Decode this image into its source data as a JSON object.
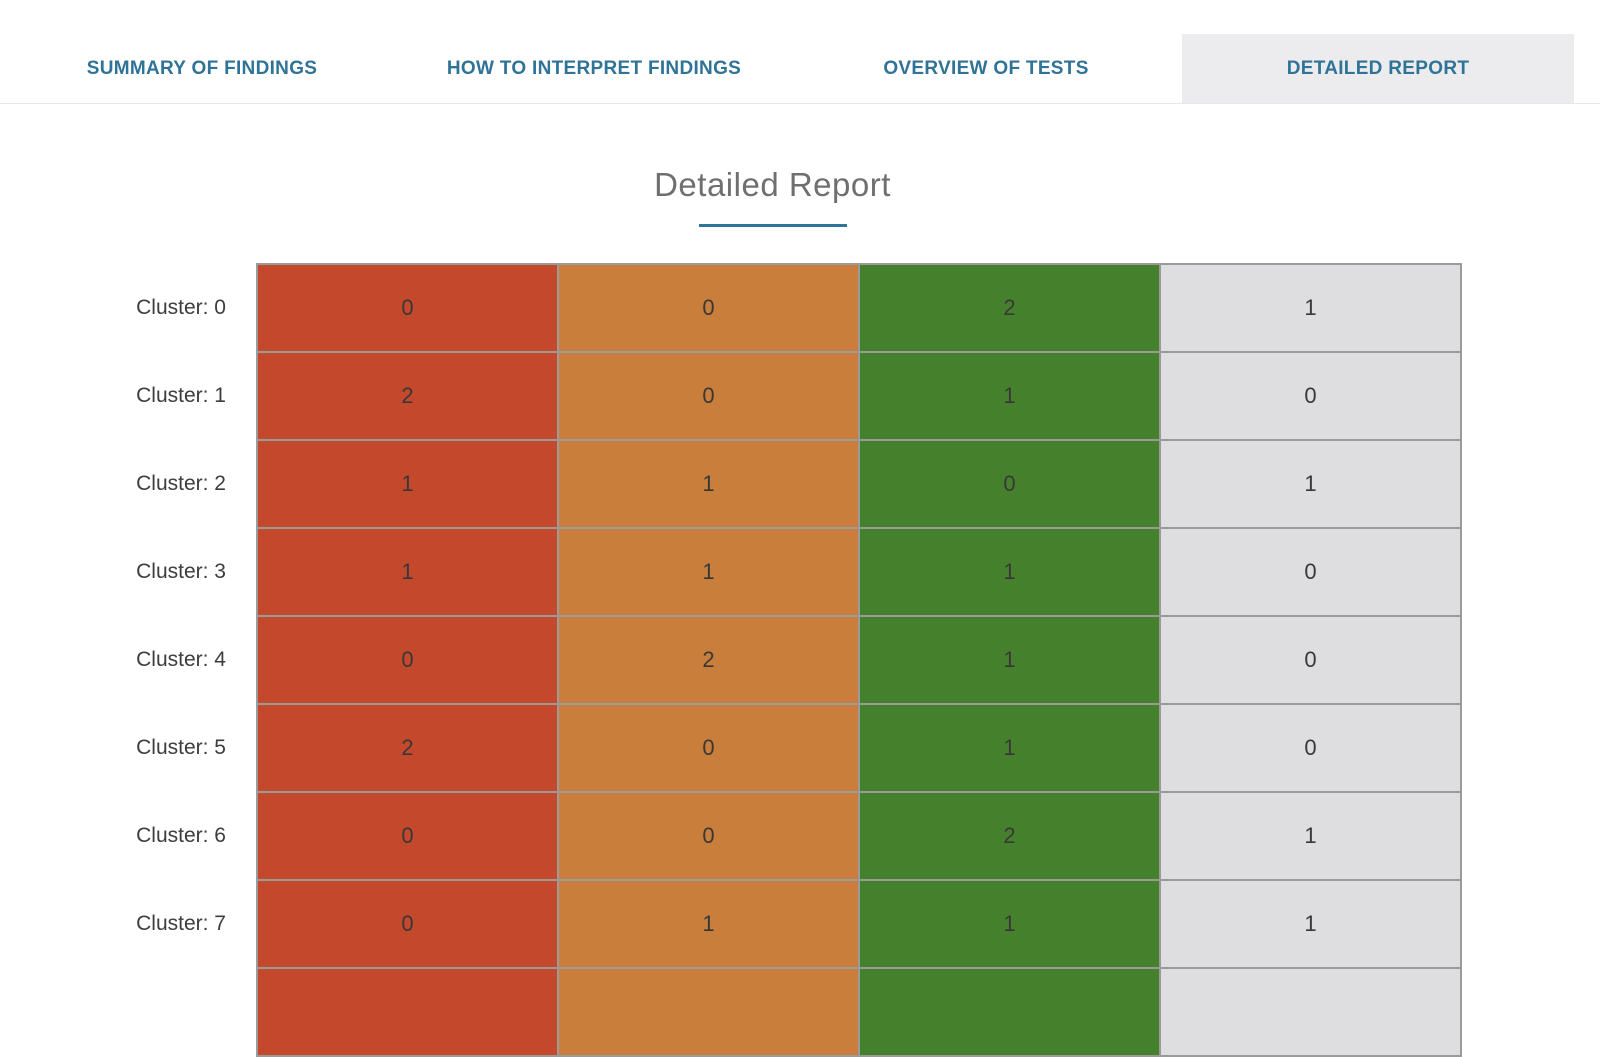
{
  "tab_bar": {
    "tabs": [
      {
        "label": "SUMMARY OF FINDINGS",
        "active": false
      },
      {
        "label": "HOW TO INTERPRET FINDINGS",
        "active": false
      },
      {
        "label": "OVERVIEW OF TESTS",
        "active": false
      },
      {
        "label": "DETAILED REPORT",
        "active": true
      }
    ],
    "label_color": "#2f7397",
    "active_tab_bg": "#ececee"
  },
  "page": {
    "title": "Detailed Report",
    "title_underline_color": "#2f7397"
  },
  "chart_data": {
    "type": "heatmap",
    "title": "Detailed Report",
    "row_labels": [
      "Cluster: 0",
      "Cluster: 1",
      "Cluster: 2",
      "Cluster: 3",
      "Cluster: 4",
      "Cluster: 5",
      "Cluster: 6",
      "Cluster: 7"
    ],
    "column_color_names": [
      "red",
      "orange",
      "green",
      "gray"
    ],
    "column_colors": [
      "#c4482b",
      "#c97f3b",
      "#45812d",
      "#dedee1"
    ],
    "values": [
      [
        0,
        0,
        2,
        1
      ],
      [
        2,
        0,
        1,
        0
      ],
      [
        1,
        1,
        0,
        1
      ],
      [
        1,
        1,
        1,
        0
      ],
      [
        0,
        2,
        1,
        0
      ],
      [
        2,
        0,
        1,
        0
      ],
      [
        0,
        0,
        2,
        1
      ],
      [
        0,
        1,
        1,
        1
      ]
    ],
    "column_headers_visible": false,
    "legend": "none",
    "partial_ninth_row_visible_at_bottom": true
  }
}
